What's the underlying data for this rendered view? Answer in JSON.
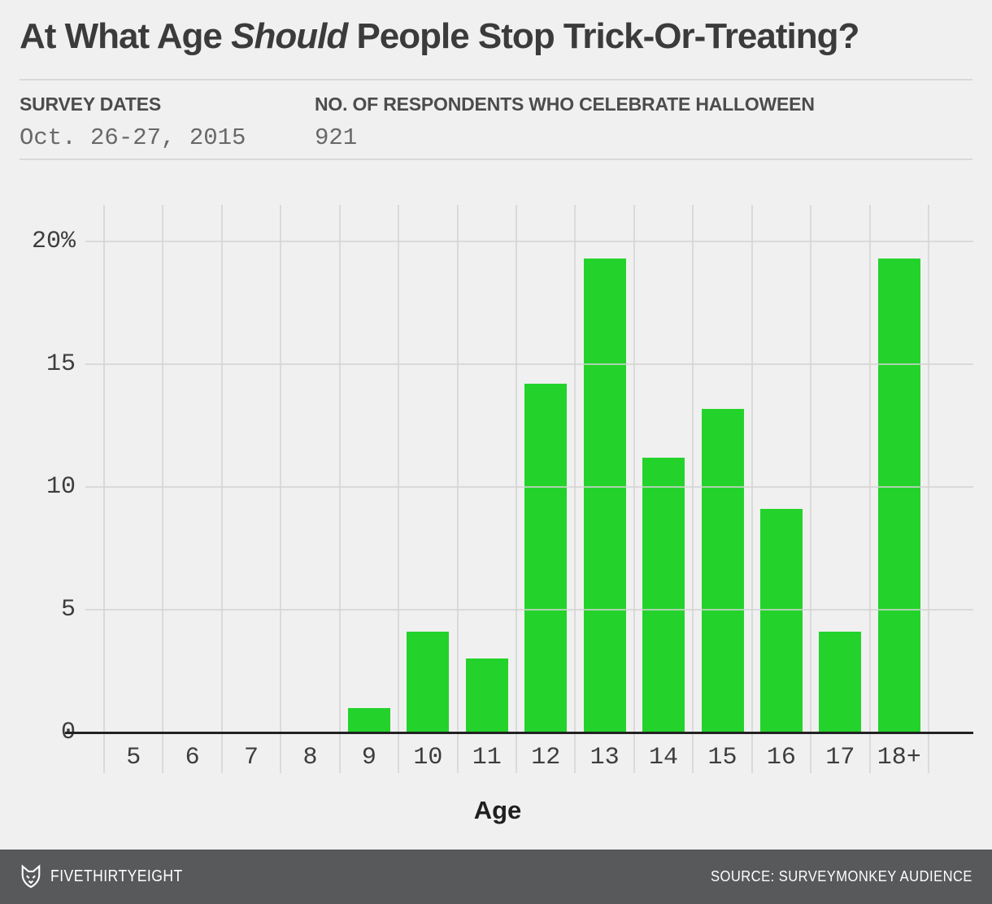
{
  "title": {
    "prefix": "At What Age ",
    "italic": "Should",
    "suffix": " People Stop Trick-Or-Treating?"
  },
  "meta": {
    "survey_dates_label": "SURVEY DATES",
    "survey_dates_value": "Oct. 26-27, 2015",
    "respondents_label": "NO. OF RESPONDENTS WHO CELEBRATE HALLOWEEN",
    "respondents_value": "921"
  },
  "chart_data": {
    "type": "bar",
    "categories": [
      "5",
      "6",
      "7",
      "8",
      "9",
      "10",
      "11",
      "12",
      "13",
      "14",
      "15",
      "16",
      "17",
      "18+"
    ],
    "values": [
      0,
      0,
      0,
      0,
      1.0,
      4.1,
      3.0,
      14.2,
      19.3,
      11.2,
      13.2,
      9.1,
      4.1,
      19.3
    ],
    "xlabel": "Age",
    "ylabel": "",
    "yticks": [
      {
        "value": 0,
        "label": "0"
      },
      {
        "value": 5,
        "label": "5"
      },
      {
        "value": 10,
        "label": "10"
      },
      {
        "value": 15,
        "label": "15"
      },
      {
        "value": 20,
        "label": "20%"
      }
    ],
    "ylim": [
      0,
      21.5
    ],
    "grid": true,
    "legend": "none",
    "bar_color": "#23d32b"
  },
  "footer": {
    "brand": "FIVETHIRTYEIGHT",
    "source": "SOURCE: SURVEYMONKEY AUDIENCE",
    "background": "#58595b"
  }
}
